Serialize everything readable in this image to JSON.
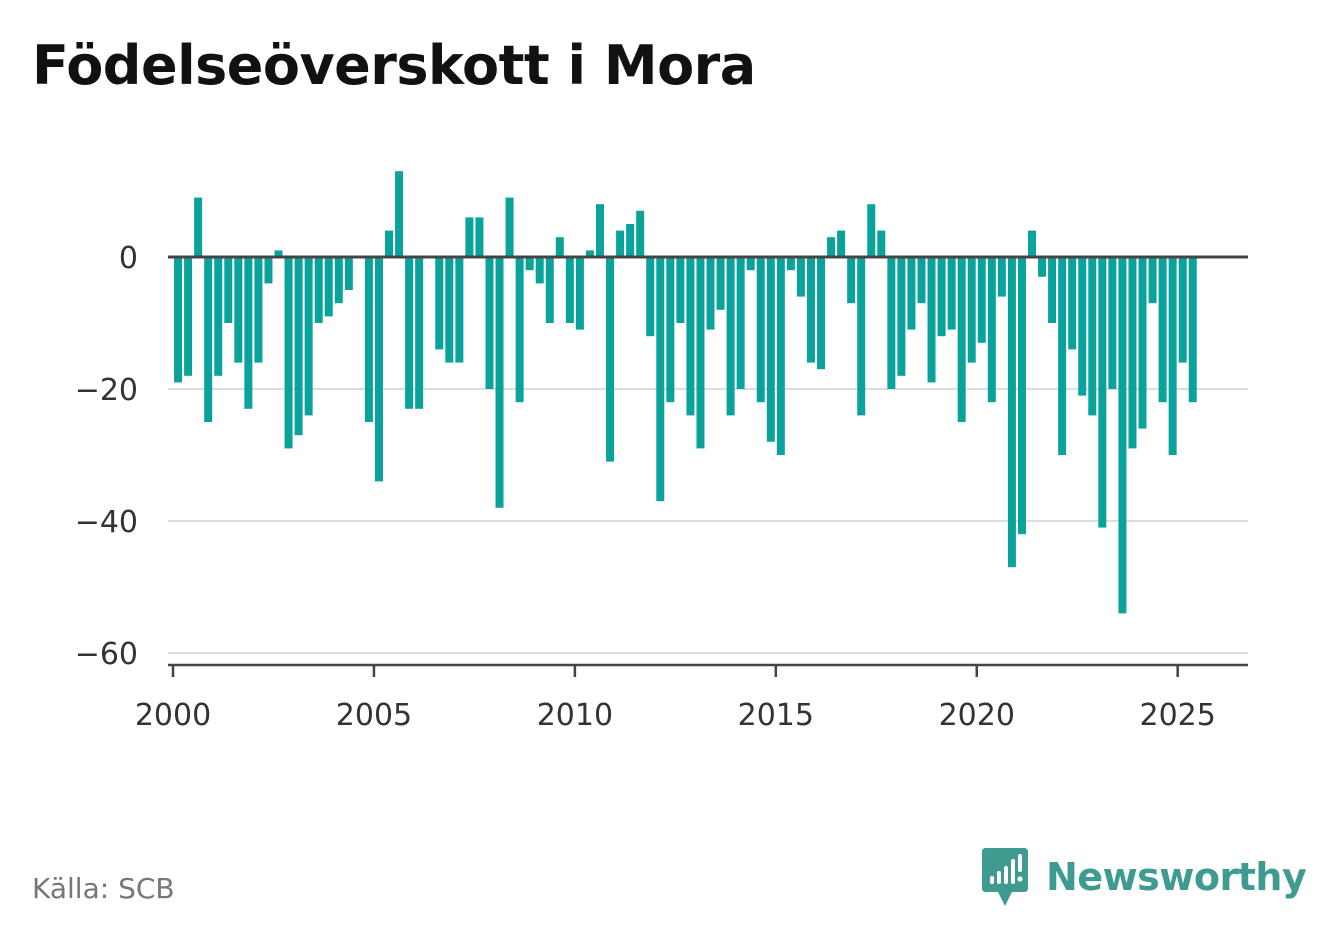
{
  "title": "Födelseöverskott i Mora",
  "source": "Källa: SCB",
  "brand": "Newsworthy",
  "colors": {
    "bar": "#0aa39b",
    "baseline": "#444444",
    "grid": "#dddddd",
    "brand": "#3f9a90"
  },
  "icons": {
    "brand_logo": "bar-chart-speech-bubble-icon"
  },
  "chart_data": {
    "type": "bar",
    "title": "Födelseöverskott i Mora",
    "xlabel": "",
    "ylabel": "",
    "frequency": "quarterly",
    "x_range": [
      1999.875,
      2026.75
    ],
    "ylim": [
      -62,
      15
    ],
    "xticks": [
      2000,
      2005,
      2010,
      2015,
      2020,
      2025
    ],
    "yticks": [
      0,
      -20,
      -40,
      -60
    ],
    "ytick_labels": [
      "0",
      "−20",
      "−40",
      "−60"
    ],
    "grid": true,
    "legend": "none",
    "x": [
      "2000-Q1",
      "2000-Q2",
      "2000-Q3",
      "2000-Q4",
      "2001-Q1",
      "2001-Q2",
      "2001-Q3",
      "2001-Q4",
      "2002-Q1",
      "2002-Q2",
      "2002-Q3",
      "2002-Q4",
      "2003-Q1",
      "2003-Q2",
      "2003-Q3",
      "2003-Q4",
      "2004-Q1",
      "2004-Q2",
      "2004-Q3",
      "2004-Q4",
      "2005-Q1",
      "2005-Q2",
      "2005-Q3",
      "2005-Q4",
      "2006-Q1",
      "2006-Q2",
      "2006-Q3",
      "2006-Q4",
      "2007-Q1",
      "2007-Q2",
      "2007-Q3",
      "2007-Q4",
      "2008-Q1",
      "2008-Q2",
      "2008-Q3",
      "2008-Q4",
      "2009-Q1",
      "2009-Q2",
      "2009-Q3",
      "2009-Q4",
      "2010-Q1",
      "2010-Q2",
      "2010-Q3",
      "2010-Q4",
      "2011-Q1",
      "2011-Q2",
      "2011-Q3",
      "2011-Q4",
      "2012-Q1",
      "2012-Q2",
      "2012-Q3",
      "2012-Q4",
      "2013-Q1",
      "2013-Q2",
      "2013-Q3",
      "2013-Q4",
      "2014-Q1",
      "2014-Q2",
      "2014-Q3",
      "2014-Q4",
      "2015-Q1",
      "2015-Q2",
      "2015-Q3",
      "2015-Q4",
      "2016-Q1",
      "2016-Q2",
      "2016-Q3",
      "2016-Q4",
      "2017-Q1",
      "2017-Q2",
      "2017-Q3",
      "2017-Q4",
      "2018-Q1",
      "2018-Q2",
      "2018-Q3",
      "2018-Q4",
      "2019-Q1",
      "2019-Q2",
      "2019-Q3",
      "2019-Q4",
      "2020-Q1",
      "2020-Q2",
      "2020-Q3",
      "2020-Q4",
      "2021-Q1",
      "2021-Q2",
      "2021-Q3",
      "2021-Q4",
      "2022-Q1",
      "2022-Q2",
      "2022-Q3",
      "2022-Q4",
      "2023-Q1",
      "2023-Q2",
      "2023-Q3",
      "2023-Q4",
      "2024-Q1",
      "2024-Q2",
      "2024-Q3",
      "2024-Q4",
      "2025-Q1",
      "2025-Q2"
    ],
    "values": [
      -19,
      -18,
      9,
      -25,
      -18,
      -10,
      -16,
      -23,
      -16,
      -4,
      1,
      -29,
      -27,
      -24,
      -10,
      -9,
      -7,
      -5,
      0,
      -25,
      -34,
      4,
      13,
      -23,
      -23,
      0,
      -14,
      -16,
      -16,
      6,
      6,
      -20,
      -38,
      9,
      -22,
      -2,
      -4,
      -10,
      3,
      -10,
      -11,
      1,
      8,
      -31,
      4,
      5,
      7,
      -12,
      -37,
      -22,
      -10,
      -24,
      -29,
      -11,
      -8,
      -24,
      -20,
      -2,
      -22,
      -28,
      -30,
      -2,
      -6,
      -16,
      -17,
      3,
      4,
      -7,
      -24,
      8,
      4,
      -20,
      -18,
      -11,
      -7,
      -19,
      -12,
      -11,
      -25,
      -16,
      -13,
      -22,
      -6,
      -47,
      -42,
      4,
      -3,
      -10,
      -30,
      -14,
      -21,
      -24,
      -41,
      -20,
      -54,
      -29,
      -26,
      -7,
      -22,
      -30,
      -16,
      -22
    ]
  }
}
